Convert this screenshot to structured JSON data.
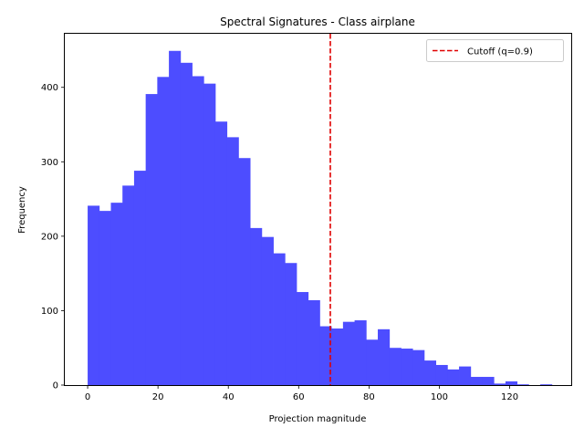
{
  "chart_data": {
    "type": "bar",
    "title": "Spectral Signatures - Class airplane",
    "xlabel": "Projection magnitude",
    "ylabel": "Frequency",
    "xlim": [
      -6.5,
      137.5
    ],
    "ylim": [
      0,
      472
    ],
    "xticks": [
      0,
      20,
      40,
      60,
      80,
      100,
      120
    ],
    "yticks": [
      0,
      100,
      200,
      300,
      400
    ],
    "bin_start": 0,
    "bin_width": 3.3,
    "frequencies": [
      241,
      234,
      245,
      268,
      288,
      391,
      414,
      449,
      433,
      415,
      405,
      354,
      333,
      305,
      211,
      199,
      177,
      164,
      125,
      114,
      79,
      76,
      85,
      87,
      61,
      75,
      50,
      49,
      47,
      33,
      27,
      21,
      25,
      11,
      11,
      2,
      5,
      1,
      0,
      1
    ],
    "bar_color": "#4d4dff",
    "cutoff": {
      "x": 69,
      "label": "Cutoff (q=0.9)",
      "color": "#e00000"
    },
    "legend_position": "top-right",
    "grid": false
  }
}
